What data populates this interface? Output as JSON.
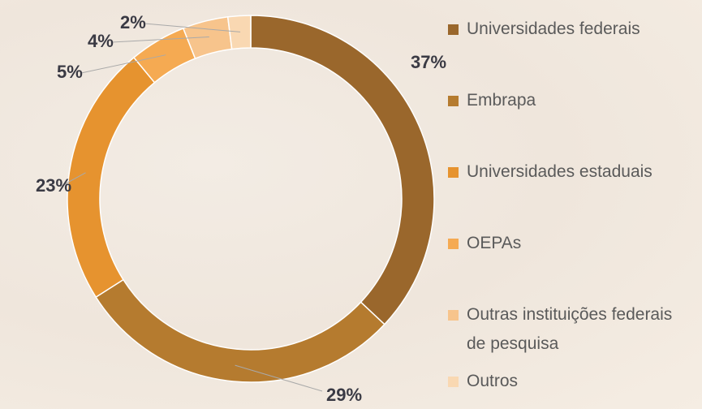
{
  "chart_data": {
    "type": "donut",
    "categories": [
      "Universidades federais",
      "Embrapa",
      "Universidades estaduais",
      "OEPAs",
      "Outras instituições federais de pesquisa",
      "Outros"
    ],
    "values": [
      37,
      29,
      23,
      5,
      4,
      2
    ],
    "value_labels": [
      "37%",
      "29%",
      "23%",
      "5%",
      "4%",
      "2%"
    ],
    "colors": [
      "#9a672c",
      "#b57b2f",
      "#e6932f",
      "#f5aa52",
      "#f7c48c",
      "#f9d8b2"
    ],
    "legend": "right"
  }
}
